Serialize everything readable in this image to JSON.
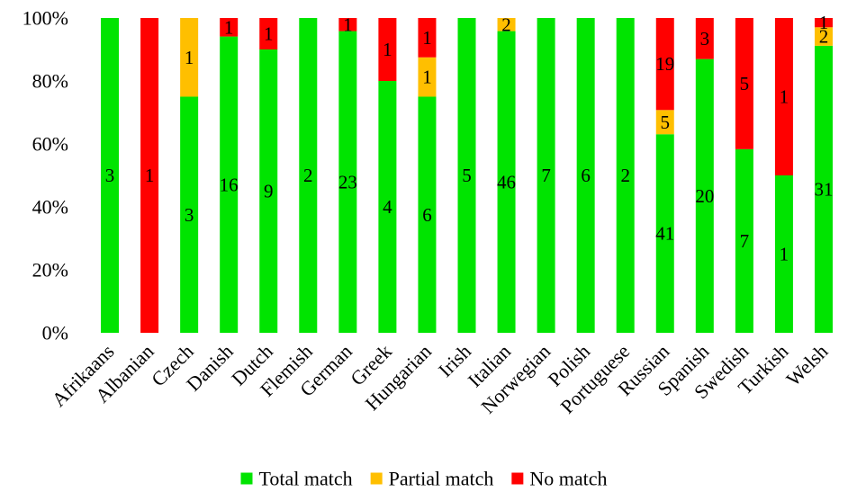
{
  "chart_data": {
    "type": "bar",
    "stacked": "percent",
    "categories": [
      "Afrikaans",
      "Albanian",
      "Czech",
      "Danish",
      "Dutch",
      "Flemish",
      "German",
      "Greek",
      "Hungarian",
      "Irish",
      "Italian",
      "Norwegian",
      "Polish",
      "Portuguese",
      "Russian",
      "Spanish",
      "Swedish",
      "Turkish",
      "Welsh"
    ],
    "series": [
      {
        "name": "Total match",
        "color": "#00e400",
        "values": [
          3,
          0,
          3,
          16,
          9,
          2,
          23,
          4,
          6,
          5,
          46,
          7,
          6,
          2,
          41,
          20,
          7,
          1,
          31
        ]
      },
      {
        "name": "Partial match",
        "color": "#ffbf00",
        "values": [
          0,
          0,
          1,
          0,
          0,
          0,
          0,
          0,
          1,
          0,
          2,
          0,
          0,
          0,
          5,
          0,
          0,
          0,
          2
        ]
      },
      {
        "name": "No match",
        "color": "#ff0000",
        "values": [
          0,
          1,
          0,
          1,
          1,
          0,
          1,
          1,
          1,
          0,
          0,
          0,
          0,
          0,
          19,
          3,
          5,
          1,
          1
        ]
      }
    ],
    "y_ticks": [
      "0%",
      "20%",
      "40%",
      "60%",
      "80%",
      "100%"
    ],
    "ylim": [
      0,
      100
    ],
    "grid": false,
    "legend_position": "bottom"
  }
}
